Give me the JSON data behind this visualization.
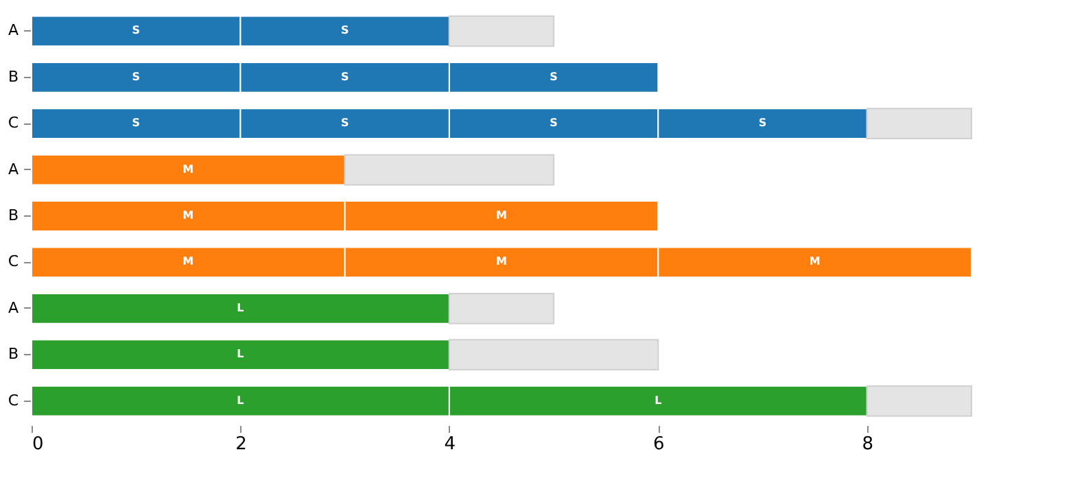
{
  "chart_data": {
    "type": "bar",
    "orientation": "horizontal",
    "stacked": true,
    "categories": [
      "A",
      "B",
      "C",
      "A",
      "B",
      "C",
      "A",
      "B",
      "C"
    ],
    "series": [
      {
        "colors": [
          "#1f77b4",
          "#1f77b4",
          "#1f77b4",
          "#ff7f0e",
          "#ff7f0e",
          "#ff7f0e",
          "#2ca02c",
          "#2ca02c",
          "#2ca02c"
        ],
        "values": [
          2,
          2,
          2,
          3,
          3,
          3,
          4,
          4,
          4
        ],
        "value_labels": [
          "S",
          "S",
          "S",
          "M",
          "M",
          "M",
          "L",
          "L",
          "L"
        ]
      },
      {
        "colors": [
          "#1f77b4",
          "#1f77b4",
          "#1f77b4",
          null,
          "#ff7f0e",
          "#ff7f0e",
          null,
          null,
          "#2ca02c"
        ],
        "values": [
          2,
          2,
          2,
          null,
          3,
          3,
          null,
          null,
          4
        ],
        "value_labels": [
          "S",
          "S",
          "S",
          null,
          "M",
          "M",
          null,
          null,
          "L"
        ]
      },
      {
        "colors": [
          null,
          "#1f77b4",
          "#1f77b4",
          null,
          null,
          "#ff7f0e",
          null,
          null,
          null
        ],
        "values": [
          null,
          2,
          2,
          null,
          null,
          3,
          null,
          null,
          null
        ],
        "value_labels": [
          null,
          "S",
          "S",
          null,
          null,
          "M",
          null,
          null,
          null
        ]
      },
      {
        "colors": [
          null,
          null,
          "#1f77b4",
          null,
          null,
          null,
          null,
          null,
          null
        ],
        "values": [
          null,
          null,
          2,
          null,
          null,
          null,
          null,
          null,
          null
        ],
        "value_labels": [
          null,
          null,
          "S",
          null,
          null,
          null,
          null,
          null,
          null
        ]
      },
      {
        "colors": [
          "#e4e4e4",
          null,
          "#e4e4e4",
          "#e4e4e4",
          null,
          null,
          "#e4e4e4",
          "#e4e4e4",
          "#e4e4e4"
        ],
        "values": [
          1,
          null,
          1,
          2,
          null,
          null,
          1,
          2,
          1
        ]
      }
    ],
    "xlim": [
      0,
      9
    ],
    "xticks": [
      0,
      2,
      4,
      6,
      8
    ],
    "grid": false
  }
}
